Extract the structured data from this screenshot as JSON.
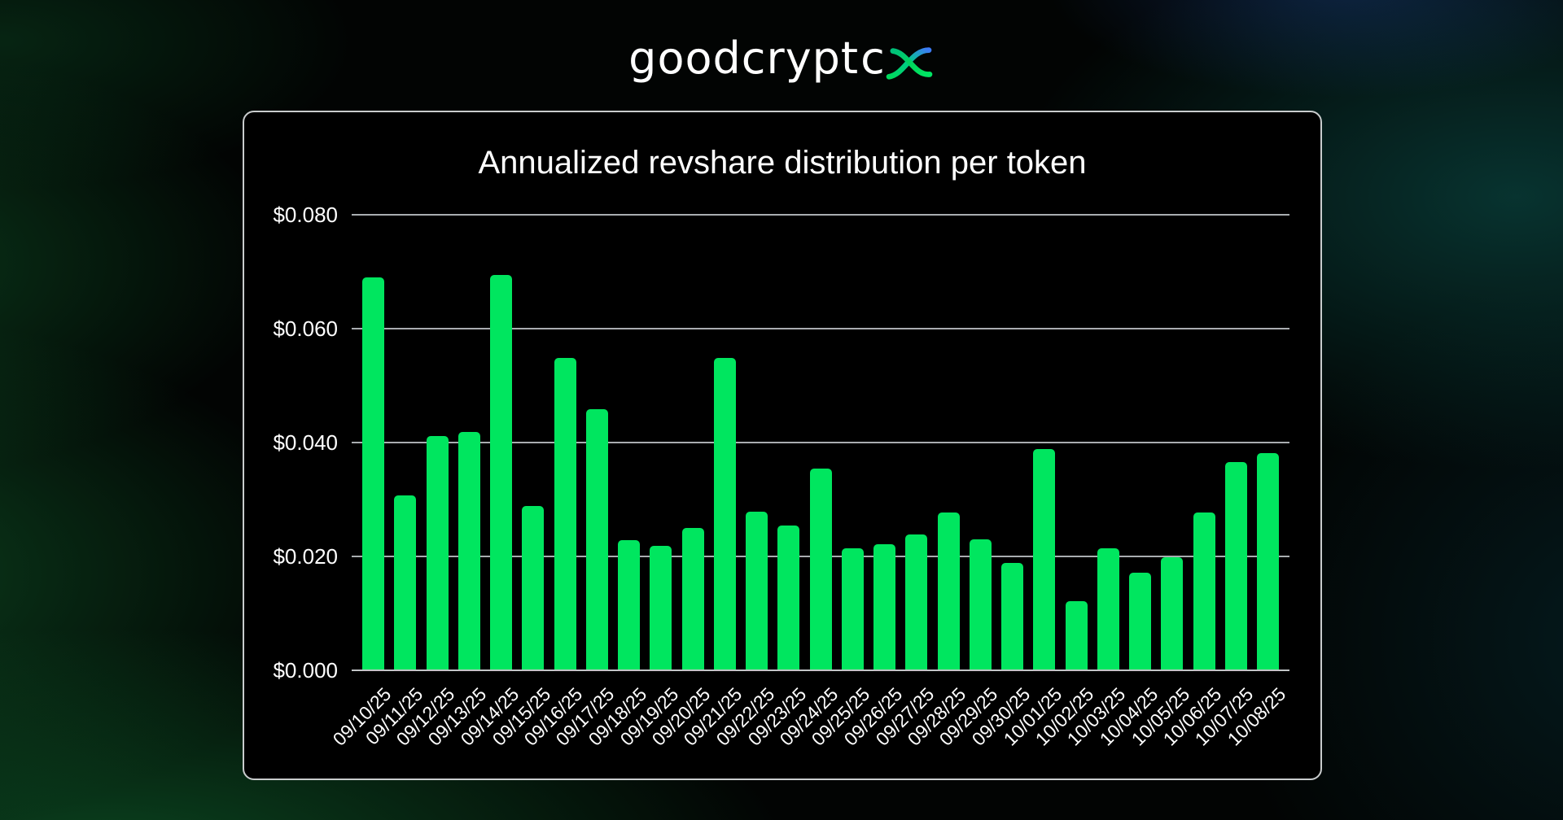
{
  "logo": {
    "wordmark": "goodcrypt",
    "wordmark_tail": "c",
    "x_icon": "x-swoosh",
    "green": "#00d95c",
    "blue": "#3d7bf7"
  },
  "chart_data": {
    "type": "bar",
    "title": "Annualized revshare distribution per token",
    "categories": [
      "09/10/25",
      "09/11/25",
      "09/12/25",
      "09/13/25",
      "09/14/25",
      "09/15/25",
      "09/16/25",
      "09/17/25",
      "09/18/25",
      "09/19/25",
      "09/20/25",
      "09/21/25",
      "09/22/25",
      "09/23/25",
      "09/24/25",
      "09/25/25",
      "09/26/25",
      "09/27/25",
      "09/28/25",
      "09/29/25",
      "09/30/25",
      "10/01/25",
      "10/02/25",
      "10/03/25",
      "10/04/25",
      "10/05/25",
      "10/06/25",
      "10/07/25",
      "10/08/25"
    ],
    "values": [
      0.069,
      0.0307,
      0.0411,
      0.0419,
      0.0695,
      0.0288,
      0.0548,
      0.0458,
      0.0229,
      0.0218,
      0.025,
      0.0548,
      0.0278,
      0.0254,
      0.0355,
      0.0215,
      0.0222,
      0.0239,
      0.0277,
      0.023,
      0.0188,
      0.0388,
      0.0122,
      0.0214,
      0.0172,
      0.0199,
      0.0277,
      0.0366,
      0.0382
    ],
    "xlabel": "",
    "ylabel": "",
    "ylim": [
      0,
      0.08
    ],
    "ytick_values": [
      0,
      0.02,
      0.04,
      0.06,
      0.08
    ],
    "ytick_labels": [
      "$0.000",
      "$0.020",
      "$0.040",
      "$0.060",
      "$0.080"
    ],
    "grid": true,
    "legend": false,
    "bar_color": "#00e65f",
    "background": "#000000",
    "text_color": "#ffffff",
    "gridline_color": "#a9adb0"
  }
}
